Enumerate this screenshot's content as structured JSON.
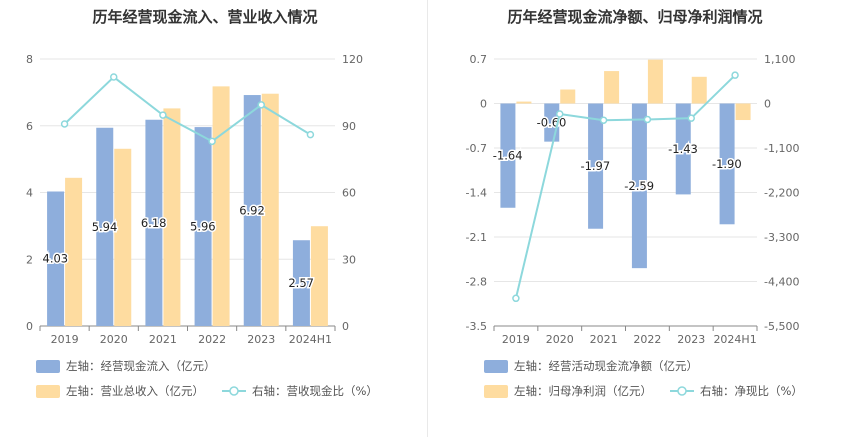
{
  "chart_data": [
    {
      "type": "bar",
      "title": "历年经营现金流入、营业收入情况",
      "categories": [
        "2019",
        "2020",
        "2021",
        "2022",
        "2023",
        "2024H1"
      ],
      "left_axis": {
        "ylim": [
          0,
          8
        ],
        "ticks": [
          "0",
          "2",
          "4",
          "6",
          "8"
        ]
      },
      "right_axis": {
        "ylim": [
          0,
          120
        ],
        "ticks": [
          "0",
          "30",
          "60",
          "90",
          "120"
        ]
      },
      "series": [
        {
          "name": "左轴：经营现金流入（亿元）",
          "type": "bar",
          "axis": "left",
          "color": "#8eaedc",
          "values": [
            4.03,
            5.94,
            6.18,
            5.96,
            6.92,
            2.57
          ],
          "labels": [
            "4.03",
            "5.94",
            "6.18",
            "5.96",
            "6.92",
            "2.57"
          ]
        },
        {
          "name": "左轴：营业总收入（亿元）",
          "type": "bar",
          "axis": "left",
          "color": "#fedca0",
          "values": [
            4.44,
            5.31,
            6.52,
            7.18,
            6.96,
            2.99
          ]
        },
        {
          "name": "右轴：营收现金比（%）",
          "type": "line",
          "axis": "right",
          "color": "#8dd8dc",
          "values": [
            90.8,
            111.9,
            94.8,
            83.0,
            99.4,
            86.0
          ]
        }
      ]
    },
    {
      "type": "bar",
      "title": "历年经营现金流净额、归母净利润情况",
      "categories": [
        "2019",
        "2020",
        "2021",
        "2022",
        "2023",
        "2024H1"
      ],
      "left_axis": {
        "ylim": [
          -3.5,
          0.7
        ],
        "ticks": [
          "0.7",
          "0",
          "-0.7",
          "-1.4",
          "-2.1",
          "-2.8",
          "-3.5"
        ]
      },
      "right_axis": {
        "ylim": [
          -5500,
          1100
        ],
        "ticks": [
          "1,100",
          "0",
          "-1,100",
          "-2,200",
          "-3,300",
          "-4,400",
          "-5,500"
        ]
      },
      "series": [
        {
          "name": "左轴：经营活动现金流净额（亿元）",
          "type": "bar",
          "axis": "left",
          "color": "#8eaedc",
          "values": [
            -1.64,
            -0.6,
            -1.97,
            -2.59,
            -1.43,
            -1.9
          ],
          "labels": [
            "-1.64",
            "-0.60",
            "-1.97",
            "-2.59",
            "-1.43",
            "-1.90"
          ]
        },
        {
          "name": "左轴：归母净利润（亿元）",
          "type": "bar",
          "axis": "left",
          "color": "#fedca0",
          "values": [
            0.03,
            0.22,
            0.51,
            0.69,
            0.42,
            -0.26
          ]
        },
        {
          "name": "右轴：净现比（%）",
          "type": "line",
          "axis": "right",
          "color": "#8dd8dc",
          "values": [
            -4815,
            -259,
            -413,
            -394,
            -363,
            700
          ]
        }
      ]
    }
  ]
}
